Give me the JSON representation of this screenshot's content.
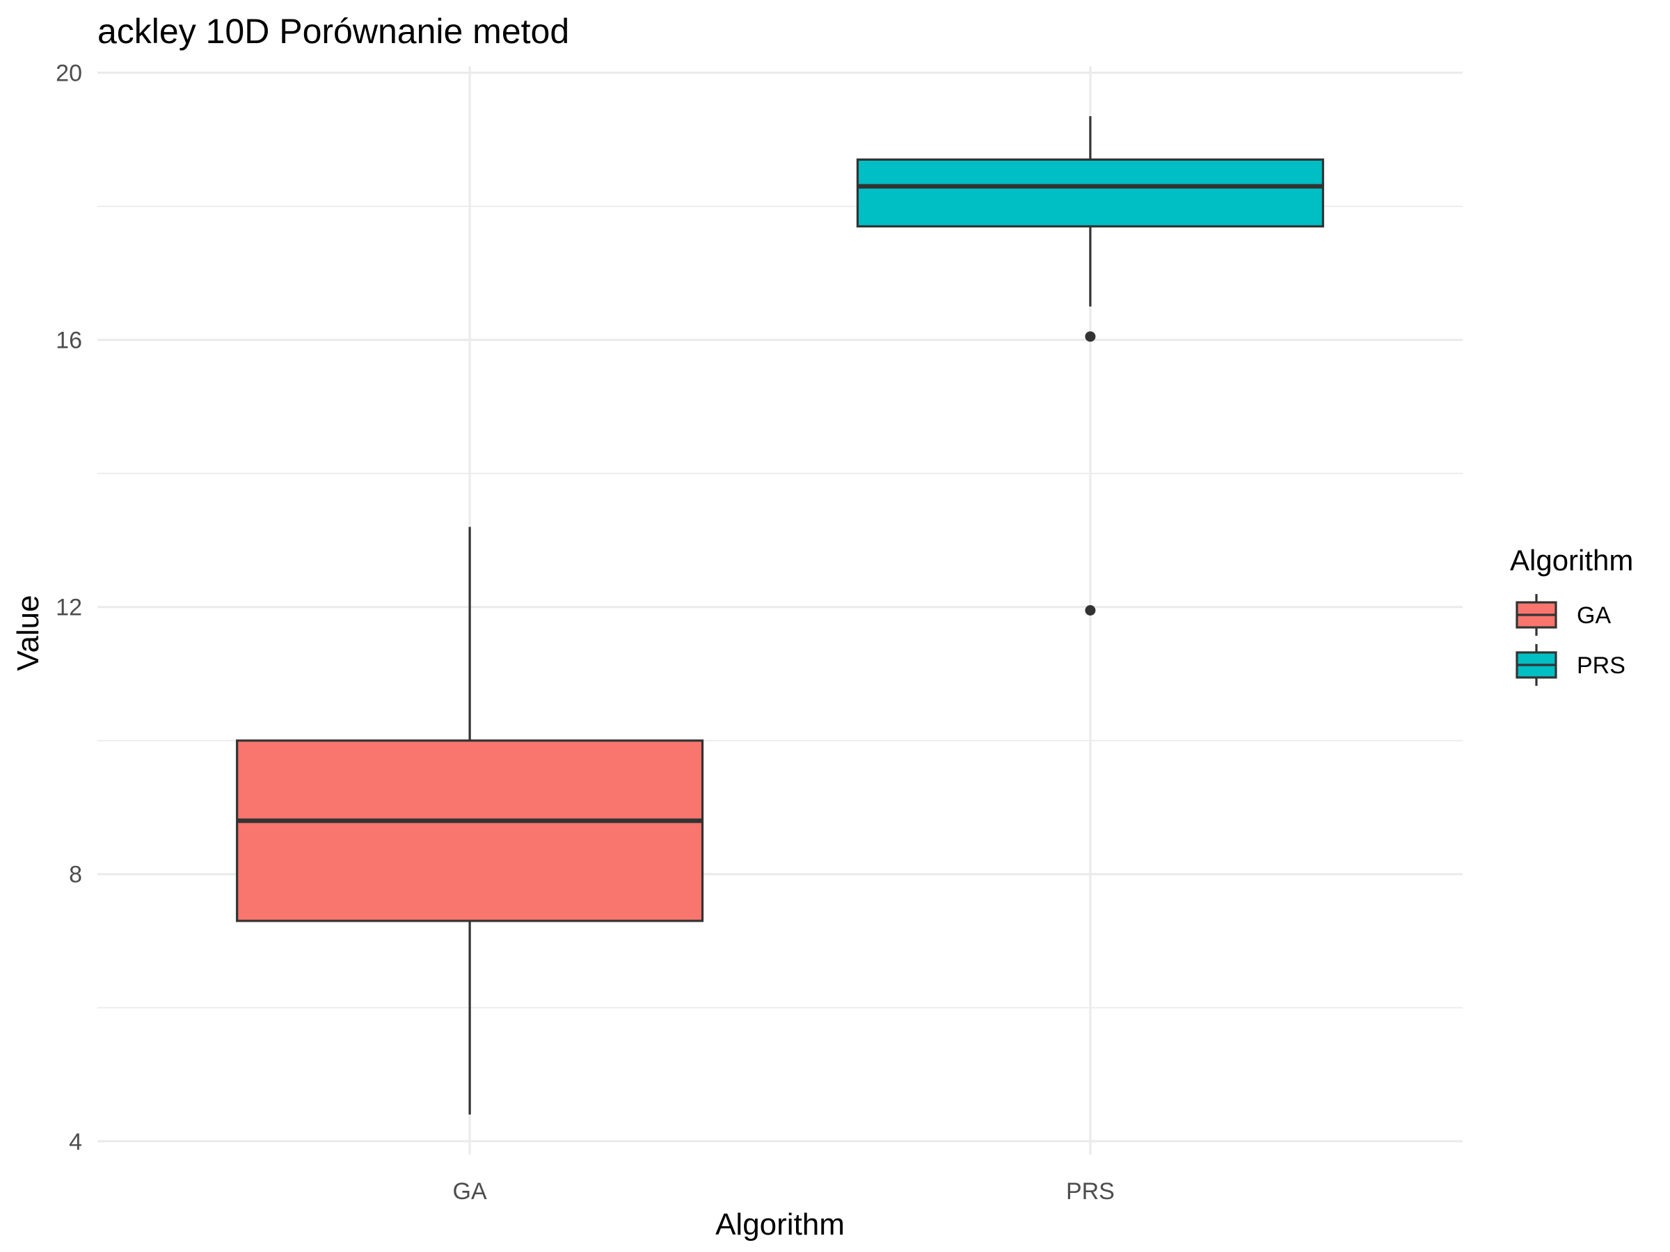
{
  "chart_data": {
    "type": "boxplot",
    "title": "ackley 10D Porównanie metod",
    "xlabel": "Algorithm",
    "ylabel": "Value",
    "categories": [
      "GA",
      "PRS"
    ],
    "ylim": [
      3.8,
      20.1
    ],
    "yticks": [
      4,
      8,
      12,
      16,
      20
    ],
    "yminor": [
      6,
      10,
      14,
      18
    ],
    "grid": true,
    "legend": {
      "title": "Algorithm",
      "position": "right",
      "entries": [
        "GA",
        "PRS"
      ]
    },
    "series": [
      {
        "category": "GA",
        "color": "#F8766D",
        "whisker_low": 4.4,
        "q1": 7.3,
        "median": 8.8,
        "q3": 10.0,
        "whisker_high": 13.2,
        "outliers": []
      },
      {
        "category": "PRS",
        "color": "#00BFC4",
        "whisker_low": 16.5,
        "q1": 17.7,
        "median": 18.3,
        "q3": 18.7,
        "whisker_high": 19.35,
        "outliers": [
          16.05,
          11.95
        ]
      }
    ]
  }
}
